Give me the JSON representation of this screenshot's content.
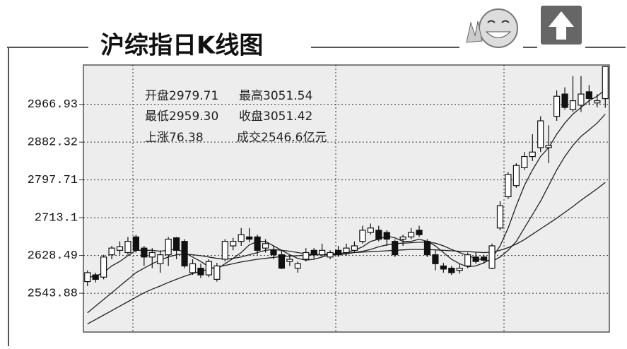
{
  "chart_data": {
    "type": "candlestick",
    "title": "沪综指日K线图",
    "annotations": [
      "开盘2979.71",
      "最高3051.54",
      "最低2959.30",
      "收盘3051.42",
      "上涨76.38",
      "成交2546.6亿元"
    ],
    "color": "#111111",
    "line_color": "#222222",
    "grid": true,
    "ylim": [
      2457,
      3055
    ],
    "yticks": [
      2543.88,
      2628.49,
      2713.1,
      2797.71,
      2882.32,
      2966.93
    ],
    "open": [
      2570,
      2585,
      2580,
      2630,
      2640,
      2635,
      2670,
      2645,
      2625,
      2610,
      2630,
      2668,
      2660,
      2590,
      2600,
      2585,
      2575,
      2620,
      2650,
      2660,
      2670,
      2670,
      2645,
      2640,
      2630,
      2615,
      2600,
      2620,
      2640,
      2630,
      2625,
      2640,
      2635,
      2640,
      2660,
      2680,
      2685,
      2680,
      2660,
      2665,
      2670,
      2685,
      2660,
      2630,
      2605,
      2600,
      2595,
      2605,
      2625,
      2625,
      2600,
      2690,
      2760,
      2785,
      2825,
      2850,
      2870,
      2870,
      2940,
      2990,
      2955,
      2965,
      2995,
      2970,
      2979.71
    ],
    "high": [
      2595,
      2590,
      2630,
      2650,
      2660,
      2670,
      2675,
      2650,
      2645,
      2640,
      2670,
      2670,
      2665,
      2620,
      2610,
      2620,
      2612,
      2665,
      2668,
      2690,
      2690,
      2675,
      2665,
      2650,
      2640,
      2630,
      2615,
      2645,
      2645,
      2655,
      2640,
      2650,
      2655,
      2660,
      2695,
      2700,
      2695,
      2685,
      2665,
      2675,
      2690,
      2695,
      2665,
      2640,
      2612,
      2605,
      2610,
      2635,
      2635,
      2630,
      2655,
      2750,
      2815,
      2835,
      2860,
      2900,
      2940,
      2920,
      2998,
      3005,
      3030,
      3030,
      3010,
      2990,
      3051.54
    ],
    "low": [
      2560,
      2568,
      2575,
      2620,
      2630,
      2630,
      2635,
      2605,
      2600,
      2590,
      2605,
      2620,
      2600,
      2585,
      2578,
      2580,
      2570,
      2615,
      2640,
      2650,
      2658,
      2630,
      2635,
      2620,
      2598,
      2605,
      2590,
      2615,
      2620,
      2625,
      2620,
      2625,
      2628,
      2635,
      2655,
      2675,
      2660,
      2650,
      2625,
      2650,
      2665,
      2670,
      2625,
      2595,
      2590,
      2585,
      2588,
      2600,
      2610,
      2610,
      2598,
      2685,
      2755,
      2780,
      2820,
      2840,
      2860,
      2835,
      2930,
      2955,
      2950,
      2950,
      2965,
      2960,
      2959.3
    ],
    "close": [
      2590,
      2575,
      2625,
      2645,
      2648,
      2660,
      2640,
      2625,
      2635,
      2630,
      2665,
      2640,
      2605,
      2610,
      2585,
      2615,
      2605,
      2660,
      2660,
      2675,
      2665,
      2640,
      2655,
      2630,
      2600,
      2620,
      2610,
      2635,
      2630,
      2640,
      2635,
      2630,
      2645,
      2650,
      2685,
      2690,
      2665,
      2665,
      2630,
      2670,
      2680,
      2675,
      2630,
      2610,
      2598,
      2590,
      2600,
      2630,
      2615,
      2618,
      2650,
      2740,
      2810,
      2830,
      2850,
      2860,
      2930,
      2875,
      2985,
      2960,
      2975,
      2990,
      2980,
      2975,
      3051.42
    ],
    "moving_averages": [
      {
        "values": [
          2580,
          2582,
          2590,
          2605,
          2615,
          2628,
          2640,
          2640,
          2640,
          2638,
          2640,
          2643,
          2635,
          2625,
          2615,
          2603,
          2598,
          2610,
          2622,
          2635,
          2652,
          2660,
          2660,
          2650,
          2640,
          2630,
          2622,
          2618,
          2620,
          2625,
          2630,
          2632,
          2635,
          2640,
          2648,
          2660,
          2665,
          2672,
          2668,
          2660,
          2660,
          2665,
          2660,
          2650,
          2635,
          2620,
          2610,
          2603,
          2605,
          2612,
          2622,
          2650,
          2690,
          2740,
          2785,
          2820,
          2850,
          2870,
          2900,
          2925,
          2945,
          2960,
          2975,
          2985,
          3000
        ]
      },
      {
        "values": [
          2500,
          2515,
          2530,
          2545,
          2560,
          2575,
          2590,
          2600,
          2610,
          2618,
          2625,
          2630,
          2632,
          2630,
          2628,
          2625,
          2622,
          2620,
          2622,
          2625,
          2630,
          2635,
          2640,
          2642,
          2640,
          2638,
          2635,
          2632,
          2630,
          2630,
          2630,
          2630,
          2632,
          2635,
          2638,
          2642,
          2648,
          2652,
          2655,
          2656,
          2657,
          2658,
          2658,
          2656,
          2650,
          2642,
          2635,
          2628,
          2622,
          2618,
          2615,
          2625,
          2640,
          2660,
          2690,
          2720,
          2750,
          2785,
          2820,
          2850,
          2875,
          2895,
          2910,
          2925,
          2945
        ]
      },
      {
        "values": [
          2475,
          2485,
          2495,
          2505,
          2515,
          2525,
          2535,
          2545,
          2553,
          2560,
          2568,
          2575,
          2582,
          2588,
          2593,
          2598,
          2602,
          2606,
          2610,
          2614,
          2617,
          2620,
          2622,
          2624,
          2626,
          2627,
          2628,
          2629,
          2630,
          2631,
          2632,
          2633,
          2634,
          2635,
          2636,
          2637,
          2638,
          2639,
          2640,
          2641,
          2642,
          2642,
          2642,
          2641,
          2640,
          2639,
          2638,
          2637,
          2636,
          2635,
          2636,
          2640,
          2646,
          2654,
          2664,
          2676,
          2688,
          2700,
          2712,
          2725,
          2738,
          2752,
          2765,
          2778,
          2792
        ]
      }
    ]
  }
}
